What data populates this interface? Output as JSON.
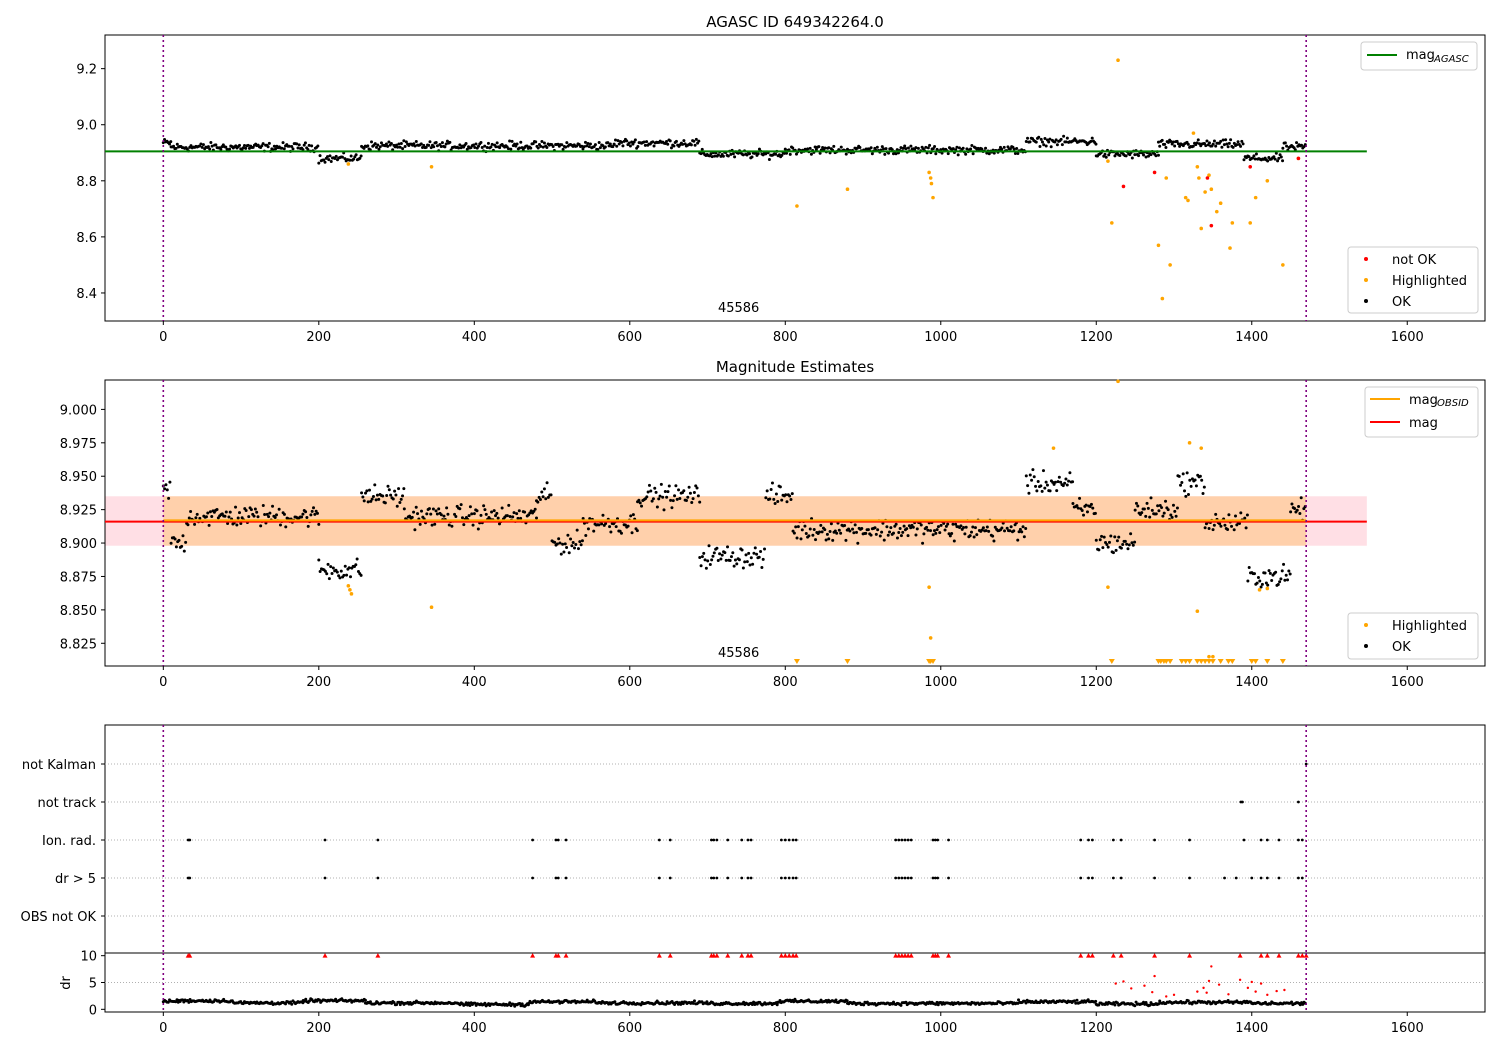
{
  "chart_data": [
    {
      "type": "scatter",
      "title": "AGASC ID 649342264.0",
      "annotation": "45586",
      "xlim": [
        -75,
        1700
      ],
      "ylim": [
        8.3,
        9.32
      ],
      "xticks": [
        0,
        200,
        400,
        600,
        800,
        1000,
        1200,
        1400,
        1600
      ],
      "yticks": [
        8.4,
        8.6,
        8.8,
        9.0,
        9.2
      ],
      "ytick_labels": [
        "8.4",
        "8.6",
        "8.8",
        "9.0",
        "9.2"
      ],
      "vlines": [
        0,
        1470
      ],
      "legend_lines": [
        {
          "label": "mag",
          "sub": "AGASC",
          "color": "#008000"
        }
      ],
      "legend_points": [
        {
          "label": "not OK",
          "color": "#ff0000"
        },
        {
          "label": "Highlighted",
          "color": "#ffa500"
        },
        {
          "label": "OK",
          "color": "#000000"
        }
      ],
      "mag_agasc": 8.905,
      "mag_agasc_x": [
        -75,
        1548
      ],
      "ok_segments": [
        [
          0,
          10,
          8.935
        ],
        [
          10,
          200,
          8.92
        ],
        [
          200,
          255,
          8.88
        ],
        [
          255,
          580,
          8.925
        ],
        [
          580,
          690,
          8.935
        ],
        [
          690,
          800,
          8.895
        ],
        [
          800,
          1110,
          8.91
        ],
        [
          1110,
          1200,
          8.94
        ],
        [
          1200,
          1280,
          8.895
        ],
        [
          1280,
          1390,
          8.93
        ],
        [
          1390,
          1440,
          8.88
        ],
        [
          1440,
          1470,
          8.92
        ]
      ],
      "highlighted": [
        [
          238,
          8.86
        ],
        [
          345,
          8.85
        ],
        [
          815,
          8.71
        ],
        [
          880,
          8.77
        ],
        [
          985,
          8.83
        ],
        [
          987,
          8.81
        ],
        [
          988,
          8.79
        ],
        [
          990,
          8.74
        ],
        [
          1215,
          8.87
        ],
        [
          1220,
          8.65
        ],
        [
          1228,
          9.23
        ],
        [
          1280,
          8.57
        ],
        [
          1285,
          8.38
        ],
        [
          1290,
          8.81
        ],
        [
          1295,
          8.5
        ],
        [
          1315,
          8.74
        ],
        [
          1318,
          8.73
        ],
        [
          1325,
          8.97
        ],
        [
          1330,
          8.85
        ],
        [
          1332,
          8.81
        ],
        [
          1335,
          8.63
        ],
        [
          1340,
          8.76
        ],
        [
          1345,
          8.82
        ],
        [
          1348,
          8.77
        ],
        [
          1355,
          8.69
        ],
        [
          1360,
          8.72
        ],
        [
          1372,
          8.56
        ],
        [
          1375,
          8.65
        ],
        [
          1398,
          8.65
        ],
        [
          1405,
          8.74
        ],
        [
          1420,
          8.8
        ],
        [
          1440,
          8.5
        ],
        [
          1460,
          8.88
        ]
      ],
      "not_ok": [
        [
          1235,
          8.78
        ],
        [
          1275,
          8.83
        ],
        [
          1343,
          8.81
        ],
        [
          1348,
          8.64
        ],
        [
          1398,
          8.85
        ],
        [
          1460,
          8.88
        ]
      ]
    },
    {
      "type": "scatter",
      "title": "Magnitude Estimates",
      "annotation": "45586",
      "xlim": [
        -75,
        1700
      ],
      "ylim": [
        8.808,
        9.022
      ],
      "xticks": [
        0,
        200,
        400,
        600,
        800,
        1000,
        1200,
        1400,
        1600
      ],
      "yticks": [
        8.825,
        8.85,
        8.875,
        8.9,
        8.925,
        8.95,
        8.975,
        9.0
      ],
      "ytick_labels": [
        "8.825",
        "8.850",
        "8.875",
        "8.900",
        "8.925",
        "8.950",
        "8.975",
        "9.000"
      ],
      "vlines": [
        0,
        1470
      ],
      "legend_lines": [
        {
          "label": "mag",
          "sub": "OBSID",
          "color": "#ffa500"
        },
        {
          "label": "mag",
          "sub": "",
          "color": "#ff0000"
        }
      ],
      "legend_points": [
        {
          "label": "Highlighted",
          "color": "#ffa500"
        },
        {
          "label": "OK",
          "color": "#000000"
        }
      ],
      "mag": 8.916,
      "mag_x": [
        -75,
        1548
      ],
      "mag_band": [
        8.898,
        8.935
      ],
      "mag_obsid": 8.917,
      "mag_obsid_x": [
        0,
        1470
      ],
      "ok_segments": [
        [
          0,
          10,
          8.94
        ],
        [
          10,
          30,
          8.9
        ],
        [
          30,
          200,
          8.92
        ],
        [
          200,
          255,
          8.88
        ],
        [
          255,
          310,
          8.935
        ],
        [
          310,
          480,
          8.92
        ],
        [
          480,
          500,
          8.935
        ],
        [
          500,
          540,
          8.9
        ],
        [
          540,
          610,
          8.915
        ],
        [
          610,
          690,
          8.935
        ],
        [
          690,
          775,
          8.89
        ],
        [
          775,
          810,
          8.935
        ],
        [
          810,
          1110,
          8.91
        ],
        [
          1110,
          1170,
          8.945
        ],
        [
          1170,
          1200,
          8.925
        ],
        [
          1200,
          1250,
          8.9
        ],
        [
          1250,
          1305,
          8.925
        ],
        [
          1305,
          1340,
          8.945
        ],
        [
          1340,
          1395,
          8.915
        ],
        [
          1395,
          1450,
          8.875
        ],
        [
          1450,
          1470,
          8.925
        ]
      ],
      "highlighted": [
        [
          238,
          8.868
        ],
        [
          240,
          8.865
        ],
        [
          242,
          8.862
        ],
        [
          345,
          8.852
        ],
        [
          985,
          8.867
        ],
        [
          987,
          8.829
        ],
        [
          1145,
          8.971
        ],
        [
          1215,
          8.867
        ],
        [
          1228,
          9.021
        ],
        [
          1320,
          8.975
        ],
        [
          1330,
          8.849
        ],
        [
          1335,
          8.971
        ],
        [
          1345,
          8.815
        ],
        [
          1350,
          8.815
        ],
        [
          1410,
          8.865
        ],
        [
          1420,
          8.866
        ]
      ],
      "low_markers": [
        815,
        880,
        985,
        987,
        990,
        1220,
        1280,
        1283,
        1287,
        1290,
        1295,
        1310,
        1315,
        1320,
        1330,
        1335,
        1340,
        1345,
        1350,
        1360,
        1370,
        1375,
        1400,
        1405,
        1420,
        1440
      ]
    },
    {
      "type": "scatter",
      "categories": [
        "not Kalman",
        "not track",
        "Ion. rad.",
        "dr > 5",
        "OBS not OK"
      ],
      "xlim": [
        -75,
        1700
      ],
      "vlines": [
        0,
        1470
      ],
      "flags": {
        "not Kalman": [
          1470
        ],
        "not track": [
          1386,
          1388,
          1460
        ],
        "Ion. rad.": [
          32,
          34,
          208,
          276,
          475,
          505,
          508,
          518,
          638,
          652,
          705,
          708,
          712,
          726,
          744,
          752,
          756,
          795,
          800,
          805,
          810,
          814,
          942,
          946,
          950,
          954,
          958,
          962,
          990,
          993,
          996,
          1010,
          1180,
          1190,
          1195,
          1222,
          1232,
          1275,
          1320,
          1390,
          1412,
          1420,
          1435,
          1460,
          1465
        ],
        "dr > 5": [
          32,
          34,
          208,
          276,
          475,
          505,
          508,
          518,
          638,
          652,
          705,
          708,
          712,
          726,
          744,
          752,
          756,
          795,
          800,
          805,
          810,
          814,
          942,
          946,
          950,
          954,
          958,
          962,
          990,
          993,
          996,
          1010,
          1180,
          1190,
          1195,
          1222,
          1232,
          1275,
          1320,
          1365,
          1380,
          1400,
          1412,
          1420,
          1435,
          1460,
          1465
        ],
        "OBS not OK": []
      }
    },
    {
      "type": "scatter",
      "ylabel": "dr",
      "xlim": [
        -75,
        1700
      ],
      "ylim": [
        -0.5,
        10.5
      ],
      "yticks": [
        0,
        5,
        10
      ],
      "ytick_labels": [
        "0",
        "5",
        "10"
      ],
      "xticks": [
        0,
        200,
        400,
        600,
        800,
        1000,
        1200,
        1400,
        1600
      ],
      "vlines": [
        0,
        1470
      ],
      "baseline_segments": [
        [
          0,
          20,
          1.5
        ],
        [
          20,
          90,
          1.6
        ],
        [
          90,
          180,
          1.2
        ],
        [
          180,
          260,
          1.6
        ],
        [
          260,
          380,
          1.2
        ],
        [
          380,
          470,
          0.9
        ],
        [
          470,
          560,
          1.4
        ],
        [
          560,
          700,
          1.2
        ],
        [
          700,
          790,
          1.1
        ],
        [
          790,
          880,
          1.5
        ],
        [
          880,
          1100,
          1.1
        ],
        [
          1100,
          1200,
          1.4
        ],
        [
          1200,
          1280,
          1.0
        ],
        [
          1280,
          1400,
          1.3
        ],
        [
          1400,
          1470,
          1.1
        ]
      ],
      "outliers": [
        [
          1225,
          4.8
        ],
        [
          1235,
          5.2
        ],
        [
          1245,
          3.9
        ],
        [
          1262,
          4.4
        ],
        [
          1272,
          3.2
        ],
        [
          1275,
          6.2
        ],
        [
          1290,
          2.4
        ],
        [
          1300,
          2.7
        ],
        [
          1330,
          3.3
        ],
        [
          1338,
          4.0
        ],
        [
          1342,
          3.1
        ],
        [
          1345,
          5.3
        ],
        [
          1348,
          8.0
        ],
        [
          1358,
          4.6
        ],
        [
          1370,
          2.8
        ],
        [
          1385,
          5.5
        ],
        [
          1395,
          4.0
        ],
        [
          1400,
          5.1
        ],
        [
          1405,
          3.3
        ],
        [
          1412,
          4.8
        ],
        [
          1420,
          2.7
        ],
        [
          1432,
          3.4
        ],
        [
          1442,
          3.6
        ]
      ],
      "capped": [
        32,
        34,
        208,
        276,
        475,
        505,
        508,
        518,
        638,
        652,
        705,
        708,
        712,
        726,
        744,
        752,
        756,
        795,
        800,
        805,
        810,
        814,
        942,
        946,
        950,
        954,
        958,
        962,
        990,
        993,
        996,
        1010,
        1180,
        1190,
        1195,
        1222,
        1232,
        1275,
        1320,
        1385,
        1412,
        1420,
        1435,
        1460,
        1465,
        1470
      ]
    }
  ]
}
